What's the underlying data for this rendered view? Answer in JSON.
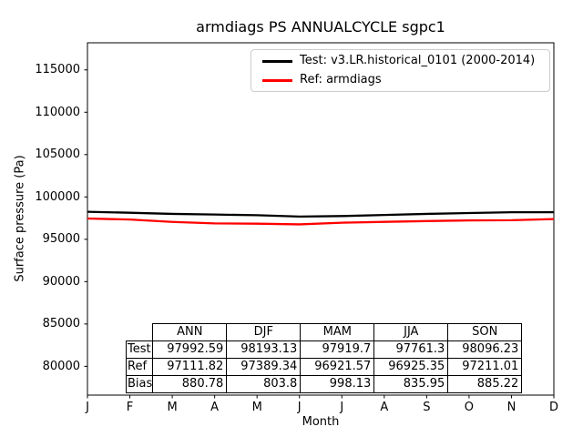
{
  "chart_data": {
    "type": "line",
    "title": "armdiags PS ANNUALCYCLE sgpc1",
    "xlabel": "Month",
    "ylabel": "Surface pressure (Pa)",
    "x_categories": [
      "J",
      "F",
      "M",
      "A",
      "M",
      "J",
      "J",
      "A",
      "S",
      "O",
      "N",
      "D"
    ],
    "series": [
      {
        "name": "Test: v3.LR.historical_0101 (2000-2014)",
        "color": "#000000",
        "values": [
          98250,
          98130,
          98000,
          97920,
          97840,
          97680,
          97740,
          97870,
          98000,
          98100,
          98190,
          98200
        ]
      },
      {
        "name": "Ref: armdiags",
        "color": "#ff0000",
        "values": [
          97450,
          97330,
          97050,
          96880,
          96840,
          96760,
          96960,
          97060,
          97150,
          97230,
          97250,
          97390
        ]
      }
    ],
    "ylim": [
      76600,
      118200
    ],
    "yticks": [
      80000,
      85000,
      90000,
      95000,
      100000,
      105000,
      110000,
      115000
    ],
    "legend_position": "upper right",
    "grid": false
  },
  "table": {
    "col_headers": [
      "ANN",
      "DJF",
      "MAM",
      "JJA",
      "SON"
    ],
    "rows": [
      {
        "label": "Test",
        "values": [
          "97992.59",
          "98193.13",
          "97919.7",
          "97761.3",
          "98096.23"
        ]
      },
      {
        "label": "Ref",
        "values": [
          "97111.82",
          "97389.34",
          "96921.57",
          "96925.35",
          "97211.01"
        ]
      },
      {
        "label": "Bias",
        "values": [
          "880.78",
          "803.8",
          "998.13",
          "835.95",
          "885.22"
        ]
      }
    ]
  }
}
